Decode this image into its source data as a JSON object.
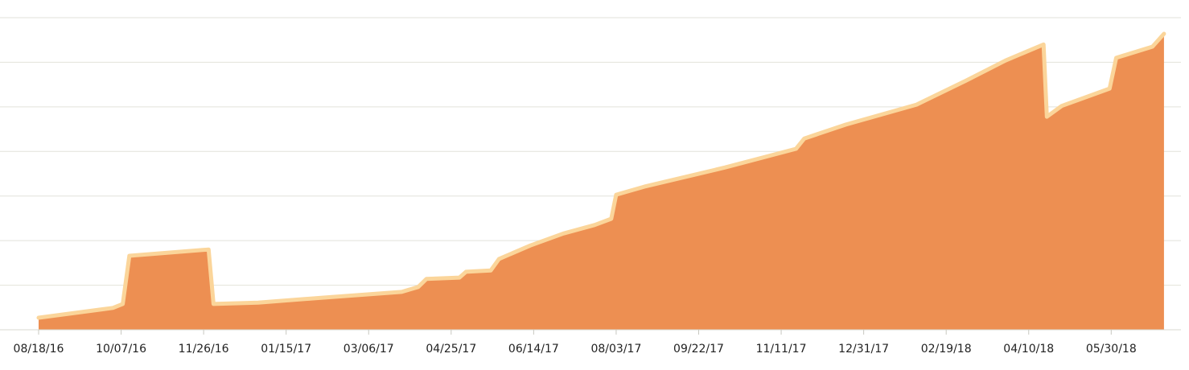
{
  "chart_data": {
    "type": "area",
    "color": "#ed8f52",
    "line_color": "#fbd59a",
    "x": [
      "08/18/16",
      "10/02/16",
      "10/08/16",
      "10/12/16",
      "11/29/16",
      "12/02/16",
      "12/29/16",
      "02/06/17",
      "03/26/17",
      "04/05/17",
      "04/10/17",
      "04/30/17",
      "05/04/17",
      "05/19/17",
      "05/24/17",
      "06/12/17",
      "07/02/17",
      "07/21/17",
      "07/31/17",
      "08/03/17",
      "08/20/17",
      "10/08/17",
      "11/20/17",
      "11/25/17",
      "12/20/17",
      "02/01/18",
      "03/03/18",
      "03/27/18",
      "04/19/18",
      "04/21/18",
      "04/30/18",
      "05/29/18",
      "06/02/18",
      "06/24/18",
      "07/01/18"
    ],
    "values": [
      0.27,
      0.49,
      0.58,
      1.66,
      1.8,
      0.58,
      0.61,
      0.72,
      0.85,
      0.96,
      1.14,
      1.17,
      1.3,
      1.33,
      1.59,
      1.89,
      2.16,
      2.35,
      2.49,
      3.03,
      3.21,
      3.64,
      4.06,
      4.29,
      4.6,
      5.05,
      5.59,
      6.04,
      6.4,
      4.78,
      5.02,
      5.41,
      6.1,
      6.35,
      6.64
    ],
    "xlim": [
      "08/18/16",
      "07/02/18"
    ],
    "xticks": [
      "08/18/16",
      "10/07/16",
      "11/26/16",
      "01/15/17",
      "03/06/17",
      "04/25/17",
      "06/14/17",
      "08/03/17",
      "09/22/17",
      "11/11/17",
      "12/31/17",
      "02/19/18",
      "04/10/18",
      "05/30/18"
    ],
    "ylim": [
      0,
      7
    ],
    "yticks": [
      1,
      2,
      3,
      4,
      5,
      6,
      7
    ],
    "grid": true,
    "y_tick_labels": false
  }
}
